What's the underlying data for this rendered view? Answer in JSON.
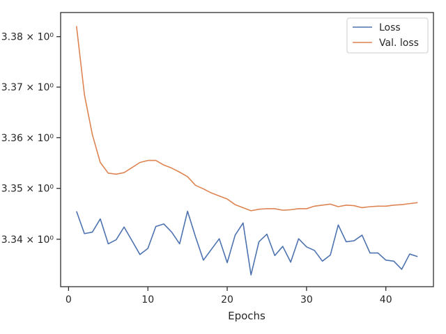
{
  "chart_data": {
    "type": "line",
    "xlabel": "Epochs",
    "ylabel": "",
    "title": "",
    "xlim": [
      -1,
      46
    ],
    "ylim": [
      3.3307,
      3.3848
    ],
    "y_scale": "log",
    "grid": false,
    "legend_position": "top-right",
    "x_ticks": [
      0,
      10,
      20,
      30,
      40
    ],
    "y_ticks": [
      {
        "value": 3.34,
        "label": "3.34 × 10⁰"
      },
      {
        "value": 3.35,
        "label": "3.35 × 10⁰"
      },
      {
        "value": 3.36,
        "label": "3.36 × 10⁰"
      },
      {
        "value": 3.37,
        "label": "3.37 × 10⁰"
      },
      {
        "value": 3.38,
        "label": "3.38 × 10⁰"
      }
    ],
    "x": [
      1,
      2,
      3,
      4,
      5,
      6,
      7,
      8,
      9,
      10,
      11,
      12,
      13,
      14,
      15,
      16,
      17,
      18,
      19,
      20,
      21,
      22,
      23,
      24,
      25,
      26,
      27,
      28,
      29,
      30,
      31,
      32,
      33,
      34,
      35,
      36,
      37,
      38,
      39,
      40,
      41,
      42,
      43,
      44
    ],
    "series": [
      {
        "name": "Loss",
        "color": "#4c72b0",
        "values": [
          3.3455,
          3.3411,
          3.3414,
          3.344,
          3.3391,
          3.3399,
          3.3424,
          3.3397,
          3.337,
          3.3382,
          3.3425,
          3.343,
          3.3414,
          3.3391,
          3.3455,
          3.3405,
          3.3359,
          3.338,
          3.3401,
          3.3354,
          3.3408,
          3.3432,
          3.333,
          3.3395,
          3.341,
          3.3368,
          3.3386,
          3.3355,
          3.3401,
          3.3385,
          3.3378,
          3.3357,
          3.3369,
          3.3428,
          3.3395,
          3.3397,
          3.3408,
          3.3373,
          3.3373,
          3.3359,
          3.3357,
          3.3341,
          3.3371,
          3.3366
        ]
      },
      {
        "name": "Val. loss",
        "color": "#dd8452",
        "values": [
          3.3821,
          3.3685,
          3.3606,
          3.3551,
          3.353,
          3.3528,
          3.3531,
          3.3541,
          3.3551,
          3.3555,
          3.3555,
          3.3546,
          3.354,
          3.3532,
          3.3523,
          3.3506,
          3.3499,
          3.3491,
          3.3485,
          3.3479,
          3.3468,
          3.3462,
          3.3456,
          3.3459,
          3.346,
          3.346,
          3.3457,
          3.3458,
          3.346,
          3.346,
          3.3465,
          3.3467,
          3.3469,
          3.3464,
          3.3467,
          3.3466,
          3.3462,
          3.3464,
          3.3465,
          3.3465,
          3.3467,
          3.3468,
          3.347,
          3.3472
        ]
      }
    ]
  }
}
